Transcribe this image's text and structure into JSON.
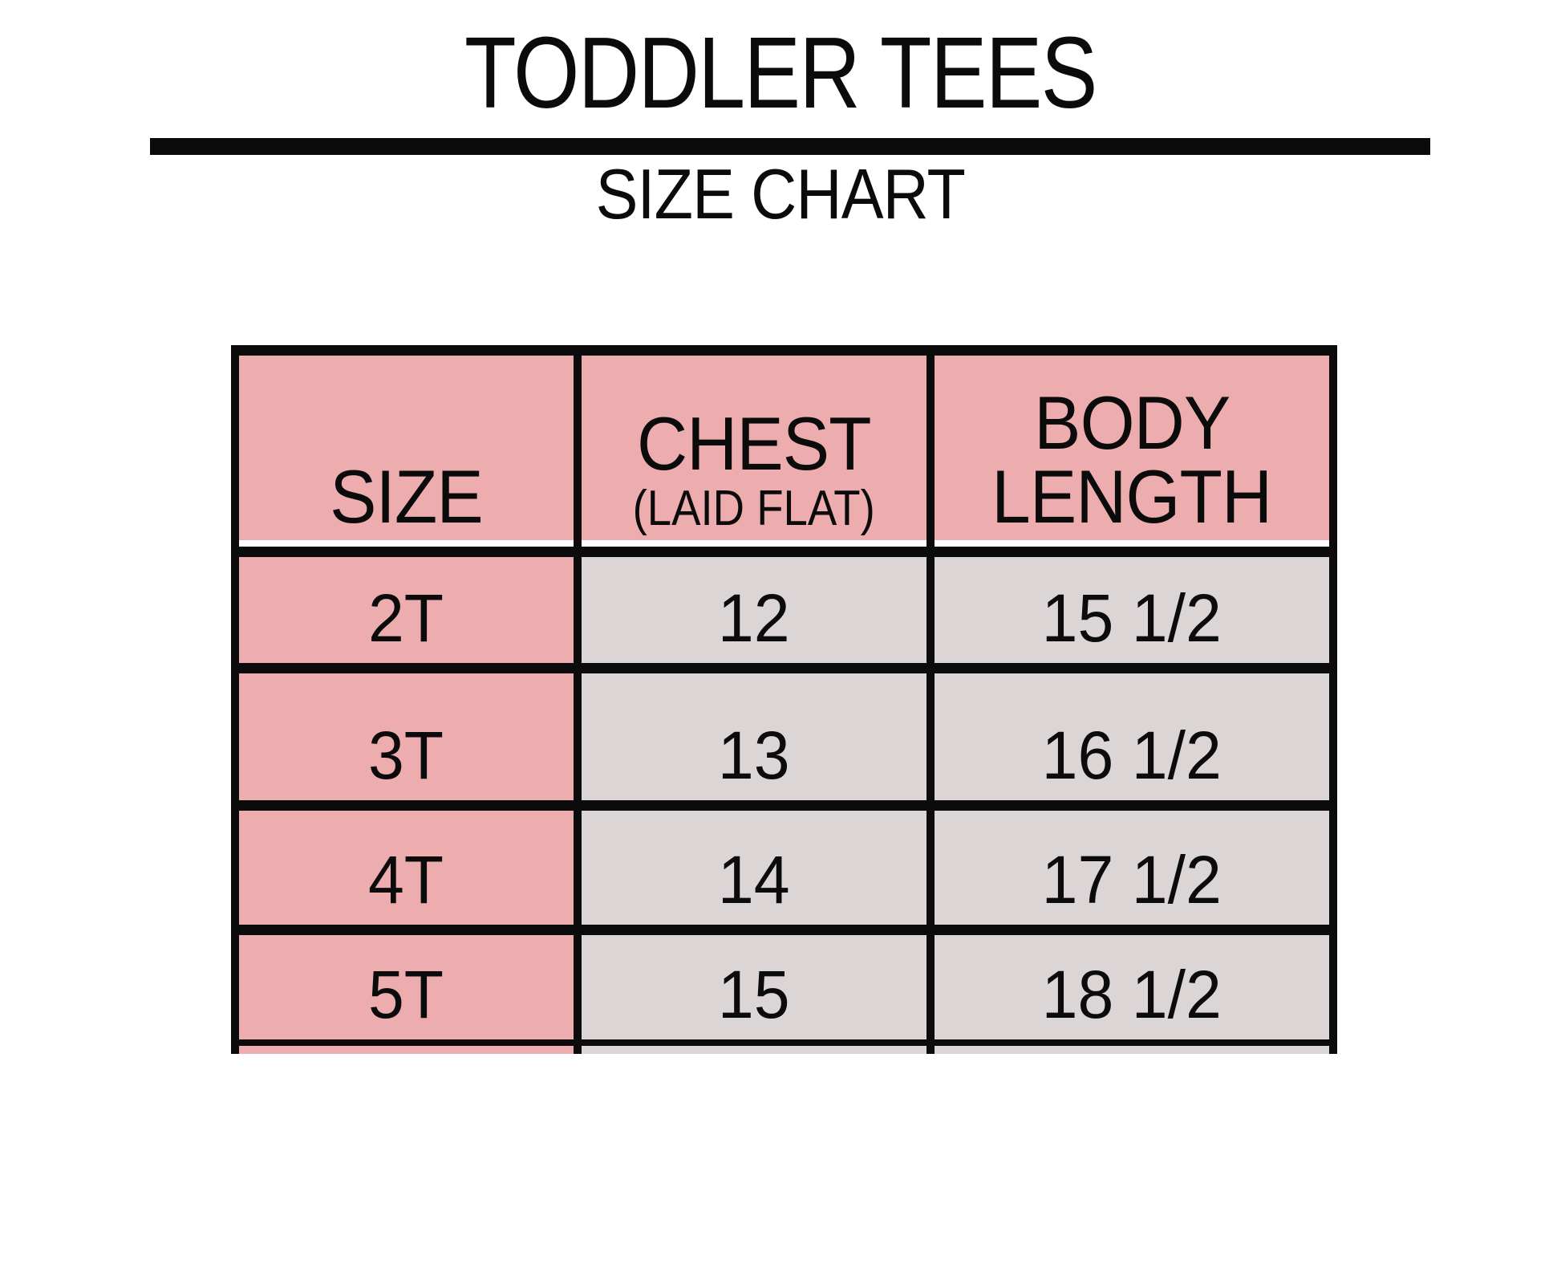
{
  "title": "TODDLER TEES",
  "subtitle": "SIZE CHART",
  "colors": {
    "pink": "#EDADAF",
    "gray": "#DBD5D6",
    "ink": "#0B0B0B",
    "background": "#FFFFFF"
  },
  "table": {
    "header": {
      "size_label": "SIZE",
      "chest_label": "CHEST",
      "chest_sublabel": "(LAID FLAT)",
      "body_line1": "BODY",
      "body_line2": "LENGTH"
    },
    "rows": [
      {
        "size": "2T",
        "chest": "12",
        "body_length": "15 1/2"
      },
      {
        "size": "3T",
        "chest": "13",
        "body_length": "16 1/2"
      },
      {
        "size": "4T",
        "chest": "14",
        "body_length": "17 1/2"
      },
      {
        "size": "5T",
        "chest": "15",
        "body_length": "18 1/2"
      }
    ]
  },
  "chart_data": {
    "type": "table",
    "title": "TODDLER TEES",
    "subtitle": "SIZE CHART",
    "columns": [
      "SIZE",
      "CHEST (LAID FLAT)",
      "BODY LENGTH"
    ],
    "rows": [
      [
        "2T",
        "12",
        "15 1/2"
      ],
      [
        "3T",
        "13",
        "16 1/2"
      ],
      [
        "4T",
        "14",
        "17 1/2"
      ],
      [
        "5T",
        "15",
        "18 1/2"
      ]
    ]
  }
}
